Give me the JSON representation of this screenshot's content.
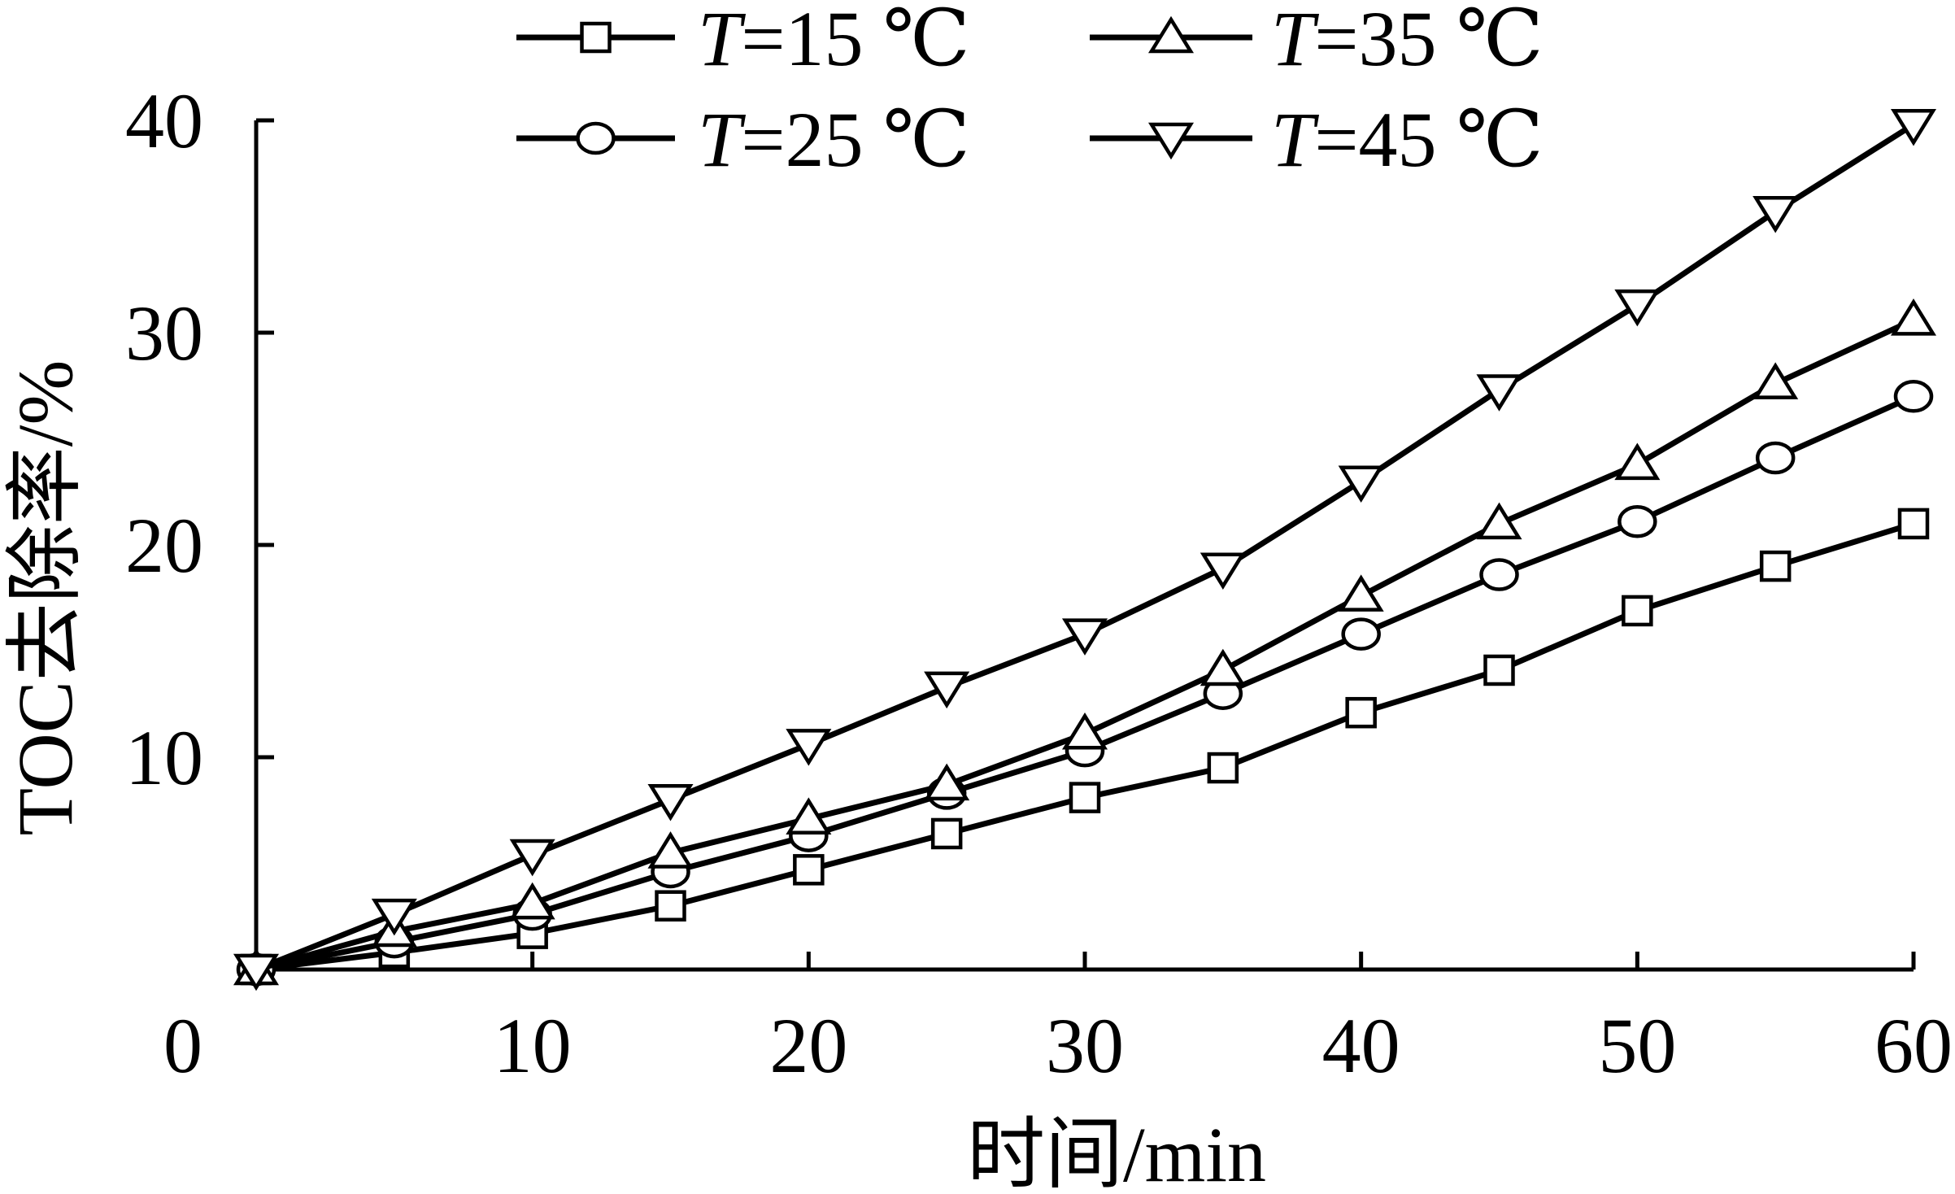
{
  "chart_data": {
    "type": "line",
    "title": "",
    "xlabel": "时间/min",
    "ylabel": "TOC去除率/%",
    "xlim": [
      0,
      60
    ],
    "ylim": [
      0,
      40
    ],
    "xticks": [
      0,
      10,
      20,
      30,
      40,
      50,
      60
    ],
    "yticks": [
      10,
      20,
      30,
      40
    ],
    "x_tick_labels": [
      "0",
      "10",
      "20",
      "30",
      "40",
      "50",
      "60"
    ],
    "y_tick_labels": [
      "10",
      "20",
      "30",
      "40"
    ],
    "grid": false,
    "legend_position": "top",
    "x": [
      0,
      5,
      10,
      15,
      20,
      25,
      30,
      35,
      40,
      45,
      50,
      55,
      60
    ],
    "series": [
      {
        "name": "T=15 ℃",
        "name_parts": {
          "var": "T",
          "rest": "=15 ℃"
        },
        "marker": "square",
        "values": [
          0,
          0.8,
          1.7,
          3.0,
          4.7,
          6.4,
          8.1,
          9.5,
          12.1,
          14.1,
          16.9,
          19.0,
          21.0
        ]
      },
      {
        "name": "T=25 ℃",
        "name_parts": {
          "var": "T",
          "rest": "=25 ℃"
        },
        "marker": "circle",
        "values": [
          0,
          1.3,
          2.6,
          4.6,
          6.3,
          8.3,
          10.3,
          13.0,
          15.8,
          18.6,
          21.1,
          24.1,
          27.0
        ]
      },
      {
        "name": "T=35 ℃",
        "name_parts": {
          "var": "T",
          "rest": "=35 ℃"
        },
        "marker": "triangle-up",
        "values": [
          0,
          1.8,
          3.1,
          5.5,
          7.1,
          8.7,
          11.1,
          14.1,
          17.6,
          21.0,
          23.8,
          27.6,
          30.6
        ]
      },
      {
        "name": "T=45 ℃",
        "name_parts": {
          "var": "T",
          "rest": "=45 ℃"
        },
        "marker": "triangle-down",
        "values": [
          0,
          2.6,
          5.4,
          8.0,
          10.6,
          13.3,
          15.8,
          18.9,
          23.0,
          27.3,
          31.3,
          35.7,
          39.8
        ]
      }
    ]
  }
}
